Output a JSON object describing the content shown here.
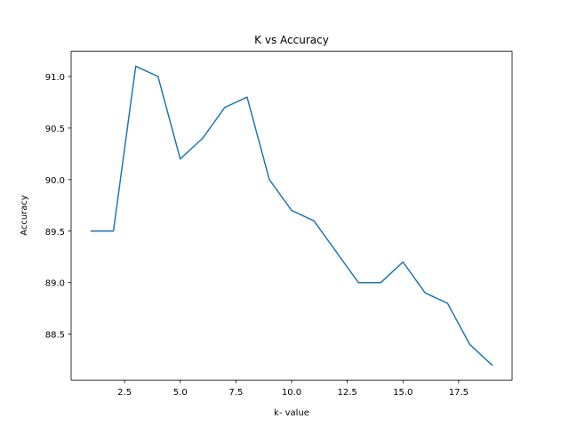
{
  "chart_data": {
    "type": "line",
    "title": "K vs Accuracy",
    "x_label": "k- value",
    "y_label": "Accuracy",
    "x": [
      1,
      2,
      3,
      4,
      5,
      6,
      7,
      8,
      9,
      10,
      11,
      12,
      13,
      14,
      15,
      16,
      17,
      18,
      19
    ],
    "values": [
      89.5,
      89.5,
      91.1,
      91.0,
      90.2,
      90.4,
      90.7,
      90.8,
      90.0,
      89.7,
      89.6,
      89.3,
      89.0,
      89.0,
      89.2,
      88.9,
      88.8,
      88.4,
      88.2
    ],
    "color": "#1f77b4",
    "xlim": [
      0.1,
      19.9
    ],
    "xticks": [
      2.5,
      {
        "value": 5,
        "label": "5.0"
      },
      7.5,
      {
        "value": 10,
        "label": "10.0"
      },
      12.5,
      {
        "value": 15,
        "label": "15.0"
      },
      17.5
    ],
    "ylim": [
      88.055,
      91.245
    ],
    "yticks": [
      88.5,
      {
        "value": 89,
        "label": "89.0"
      },
      89.5,
      {
        "value": 90,
        "label": "90.0"
      },
      90.5,
      {
        "value": 91,
        "label": "91.0"
      }
    ]
  }
}
